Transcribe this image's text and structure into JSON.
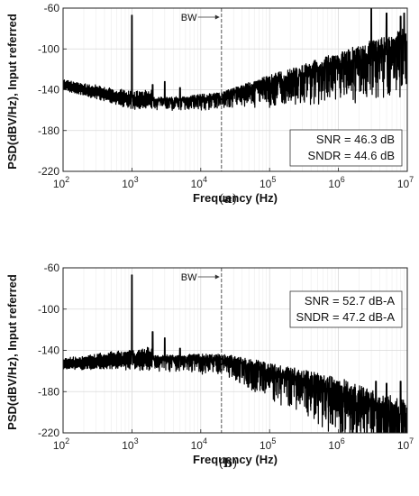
{
  "chart_data": [
    {
      "type": "line",
      "panel_label": "a",
      "xlabel": "Frequency (Hz)",
      "ylabel": "PSD(dBV/Hz), Input referred",
      "x_scale": "log",
      "xlim": [
        100,
        10000000
      ],
      "ylim": [
        -220,
        -60
      ],
      "x_ticks": [
        {
          "value": 100,
          "base": "10",
          "exp": "2"
        },
        {
          "value": 1000,
          "base": "10",
          "exp": "3"
        },
        {
          "value": 10000,
          "base": "10",
          "exp": "4"
        },
        {
          "value": 100000,
          "base": "10",
          "exp": "5"
        },
        {
          "value": 1000000,
          "base": "10",
          "exp": "6"
        },
        {
          "value": 10000000,
          "base": "10",
          "exp": "7"
        }
      ],
      "y_ticks": [
        {
          "value": -60,
          "label": "-60"
        },
        {
          "value": -100,
          "label": "-100"
        },
        {
          "value": -140,
          "label": "-140"
        },
        {
          "value": -180,
          "label": "-180"
        },
        {
          "value": -220,
          "label": "-220"
        }
      ],
      "grid": true,
      "bw_marker": {
        "label": "BW",
        "x": 20000
      },
      "annotations": [
        {
          "label": "SNR = 46.3 dB"
        },
        {
          "label": "SNDR = 44.6 dB"
        }
      ],
      "annotation_position": "bottom-right",
      "spectrum": {
        "floor": [
          [
            100,
            -135
          ],
          [
            200,
            -140
          ],
          [
            1000,
            -150
          ],
          [
            5000,
            -150
          ],
          [
            20000,
            -146
          ],
          [
            100000,
            -133
          ],
          [
            1000000,
            -115
          ],
          [
            10000000,
            -95
          ]
        ],
        "spread": [
          [
            100,
            4
          ],
          [
            20000,
            10
          ],
          [
            1000000,
            30
          ],
          [
            10000000,
            40
          ]
        ],
        "peaks": [
          [
            1000,
            -67
          ],
          [
            2000,
            -135
          ],
          [
            3000,
            -132
          ],
          [
            5000,
            -138
          ],
          [
            3000000,
            -60
          ],
          [
            5000000,
            -65
          ],
          [
            8000000,
            -68
          ],
          [
            9000000,
            -65
          ]
        ]
      }
    },
    {
      "type": "line",
      "panel_label": "b",
      "xlabel": "Frequency (Hz)",
      "ylabel": "PSD(dBV/Hz), Input referred",
      "x_scale": "log",
      "xlim": [
        100,
        10000000
      ],
      "ylim": [
        -220,
        -60
      ],
      "x_ticks": [
        {
          "value": 100,
          "base": "10",
          "exp": "2"
        },
        {
          "value": 1000,
          "base": "10",
          "exp": "3"
        },
        {
          "value": 10000,
          "base": "10",
          "exp": "4"
        },
        {
          "value": 100000,
          "base": "10",
          "exp": "5"
        },
        {
          "value": 1000000,
          "base": "10",
          "exp": "6"
        },
        {
          "value": 10000000,
          "base": "10",
          "exp": "7"
        }
      ],
      "y_ticks": [
        {
          "value": -60,
          "label": "-60"
        },
        {
          "value": -100,
          "label": "-100"
        },
        {
          "value": -140,
          "label": "-140"
        },
        {
          "value": -180,
          "label": "-180"
        },
        {
          "value": -220,
          "label": "-220"
        }
      ],
      "grid": true,
      "bw_marker": {
        "label": "BW",
        "x": 20000
      },
      "annotations": [
        {
          "label": "SNR = 52.7 dB-A"
        },
        {
          "label": "SNDR = 47.2 dB-A"
        }
      ],
      "annotation_position": "top-right",
      "spectrum": {
        "floor": [
          [
            100,
            -153
          ],
          [
            500,
            -150
          ],
          [
            2000,
            -148
          ],
          [
            20000,
            -148
          ],
          [
            100000,
            -160
          ],
          [
            1000000,
            -180
          ],
          [
            10000000,
            -205
          ]
        ],
        "spread": [
          [
            100,
            4
          ],
          [
            20000,
            12
          ],
          [
            1000000,
            35
          ],
          [
            10000000,
            40
          ]
        ],
        "peaks": [
          [
            1000,
            -67
          ],
          [
            2000,
            -122
          ],
          [
            3000,
            -128
          ],
          [
            5000,
            -138
          ],
          [
            3500000,
            -170
          ],
          [
            5000000,
            -172
          ],
          [
            8000000,
            -170
          ]
        ]
      }
    }
  ]
}
